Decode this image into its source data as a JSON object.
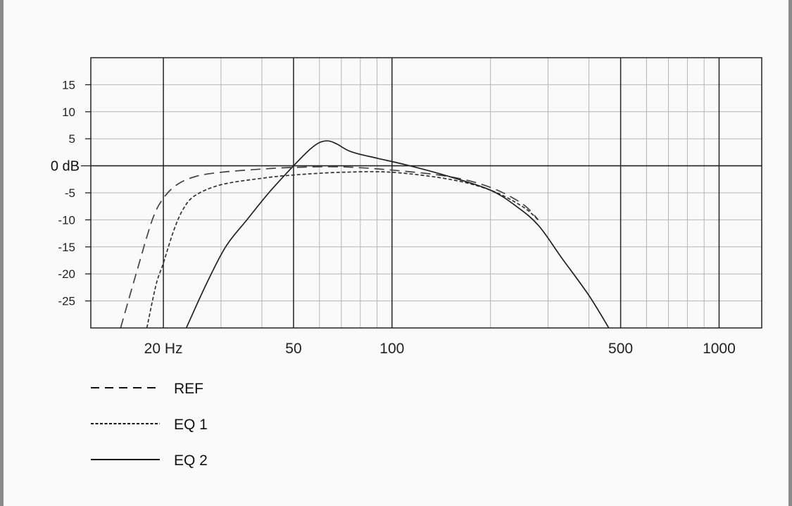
{
  "chart_data": {
    "type": "line",
    "x_scale": "log",
    "xlim": [
      12,
      1350
    ],
    "ylim": [
      -30,
      20
    ],
    "grid": true,
    "legend_position": "bottom-left",
    "x_ticks": [
      {
        "value": 20,
        "label": "20 Hz"
      },
      {
        "value": 50,
        "label": "50"
      },
      {
        "value": 100,
        "label": "100"
      },
      {
        "value": 500,
        "label": "500"
      },
      {
        "value": 1000,
        "label": "1000"
      }
    ],
    "y_ticks": [
      {
        "value": 15,
        "label": "15"
      },
      {
        "value": 10,
        "label": "10"
      },
      {
        "value": 5,
        "label": "5"
      },
      {
        "value": 0,
        "label": "0 dB"
      },
      {
        "value": -5,
        "label": "-5"
      },
      {
        "value": -10,
        "label": "-10"
      },
      {
        "value": -15,
        "label": "-15"
      },
      {
        "value": -20,
        "label": "-20"
      },
      {
        "value": -25,
        "label": "-25"
      }
    ],
    "series": [
      {
        "name": "REF",
        "style": "dashed",
        "color": "#444444",
        "points": [
          [
            14.8,
            -30
          ],
          [
            16.5,
            -20
          ],
          [
            18.5,
            -10
          ],
          [
            20,
            -6
          ],
          [
            22,
            -3.5
          ],
          [
            25,
            -2
          ],
          [
            30,
            -1.2
          ],
          [
            40,
            -0.6
          ],
          [
            50,
            -0.3
          ],
          [
            70,
            -0.2
          ],
          [
            100,
            -0.8
          ],
          [
            150,
            -2
          ],
          [
            200,
            -4
          ],
          [
            250,
            -7
          ],
          [
            280,
            -10
          ]
        ]
      },
      {
        "name": "EQ 1",
        "style": "dotted",
        "color": "#333333",
        "points": [
          [
            17.8,
            -30
          ],
          [
            19,
            -22
          ],
          [
            20,
            -18
          ],
          [
            21.5,
            -12
          ],
          [
            23,
            -8
          ],
          [
            25,
            -5.5
          ],
          [
            30,
            -3.5
          ],
          [
            40,
            -2.3
          ],
          [
            50,
            -1.7
          ],
          [
            70,
            -1.2
          ],
          [
            100,
            -1.2
          ],
          [
            150,
            -2.5
          ],
          [
            200,
            -4.5
          ],
          [
            250,
            -7.5
          ],
          [
            280,
            -10
          ]
        ]
      },
      {
        "name": "EQ 2",
        "style": "solid",
        "color": "#222222",
        "points": [
          [
            23.5,
            -30
          ],
          [
            27,
            -22
          ],
          [
            31,
            -15
          ],
          [
            36,
            -10
          ],
          [
            42,
            -5
          ],
          [
            50,
            0
          ],
          [
            56,
            3
          ],
          [
            60,
            4.3
          ],
          [
            64,
            4.6
          ],
          [
            68,
            4
          ],
          [
            75,
            2.6
          ],
          [
            90,
            1.4
          ],
          [
            110,
            0.2
          ],
          [
            150,
            -2
          ],
          [
            200,
            -4.5
          ],
          [
            240,
            -7.5
          ],
          [
            280,
            -11
          ],
          [
            330,
            -17
          ],
          [
            400,
            -24
          ],
          [
            460,
            -30
          ]
        ]
      }
    ]
  }
}
